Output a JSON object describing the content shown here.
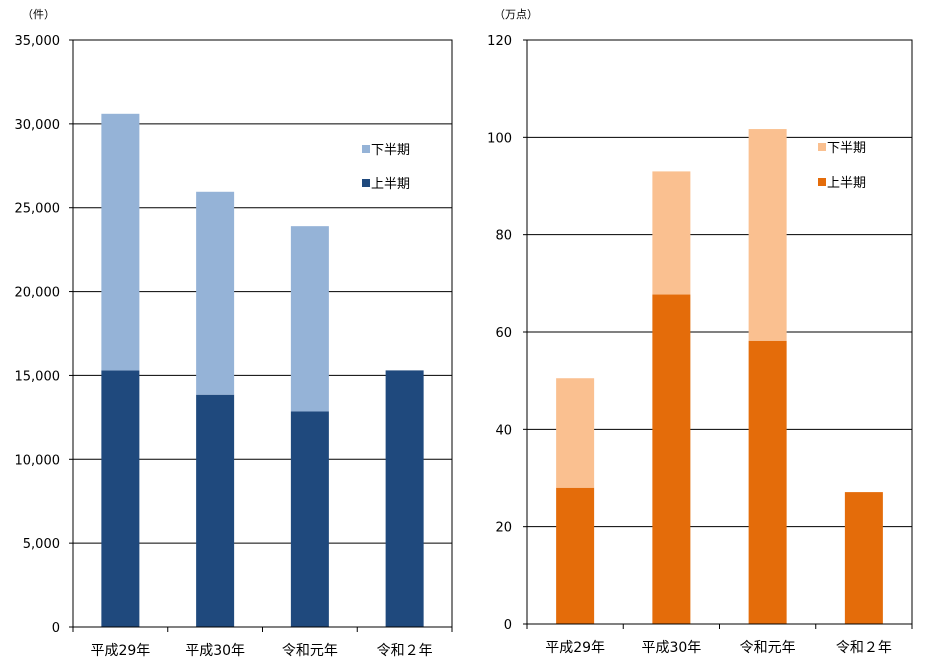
{
  "chart_data": [
    {
      "type": "bar",
      "stacked": true,
      "unit_label": "（件）",
      "categories": [
        "平成29年",
        "平成30年",
        "令和元年",
        "令和２年"
      ],
      "series": [
        {
          "name": "上半期",
          "values": [
            15300,
            13850,
            12850,
            15300
          ],
          "color": "#1f497d"
        },
        {
          "name": "下半期",
          "values": [
            15300,
            12100,
            11050,
            null
          ],
          "color": "#95b3d7"
        }
      ],
      "yticks": [
        "0",
        "5,000",
        "10,000",
        "15,000",
        "20,000",
        "25,000",
        "30,000",
        "35,000"
      ],
      "ylim": [
        0,
        35000
      ],
      "ystep": 5000,
      "grid": true,
      "legend_position": "top-right"
    },
    {
      "type": "bar",
      "stacked": true,
      "unit_label": "（万点）",
      "categories": [
        "平成29年",
        "平成30年",
        "令和元年",
        "令和２年"
      ],
      "series": [
        {
          "name": "上半期",
          "values": [
            28,
            67.7,
            58.2,
            27.1
          ],
          "color": "#e46c0a"
        },
        {
          "name": "下半期",
          "values": [
            22.5,
            25.3,
            43.5,
            null
          ],
          "color": "#fac090"
        }
      ],
      "yticks": [
        "0",
        "20",
        "40",
        "60",
        "80",
        "100",
        "120"
      ],
      "ylim": [
        0,
        120
      ],
      "ystep": 20,
      "grid": true,
      "legend_position": "top-right"
    }
  ]
}
